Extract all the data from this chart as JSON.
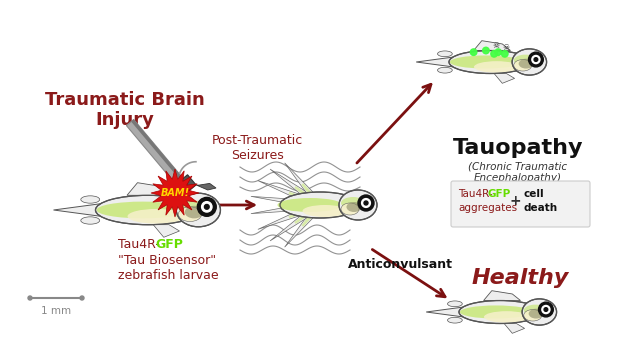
{
  "bg_color": "#ffffff",
  "dark_red": "#8B1A1A",
  "arrow_color": "#7B1010",
  "text_traumatic": "Traumatic Brain\nInjury",
  "text_post": "Post-Traumatic\nSeizures",
  "text_tauopathy": "Tauopathy",
  "text_cte": "(Chronic Traumatic\nEncephalopathy)",
  "text_healthy": "Healthy",
  "text_anticonvulsant": "Anticonvulsant",
  "text_biosensor1": "Tau4R-",
  "text_biosensor2": "GFP",
  "text_biosensor3": "\"Tau Biosensor\"\nzebrafish larvae",
  "text_1mm": "1 mm",
  "scale_bar_color": "#888888",
  "green_color": "#b8e050",
  "gfp_green": "#66dd00",
  "pain_red": "#CC1111",
  "fish_outline": "#555555",
  "fish_body": "#eeeeee",
  "fish_belly": "#f5f0c8",
  "fish_green": "#c8e878",
  "fish_dark": "#444444",
  "eye_outer": "#111111",
  "eye_white": "#ffffff",
  "hammer_handle_light": "#aaaaaa",
  "hammer_handle_dark": "#777777",
  "hammer_head_dark": "#444444",
  "hammer_head_mid": "#666666",
  "tauopathy_box_bg": "#f2f2f2",
  "tauopathy_box_edge": "#cccccc",
  "skull_color": "#333333",
  "tau_text_color": "#8B1A1A",
  "cell_death_color": "#111111"
}
